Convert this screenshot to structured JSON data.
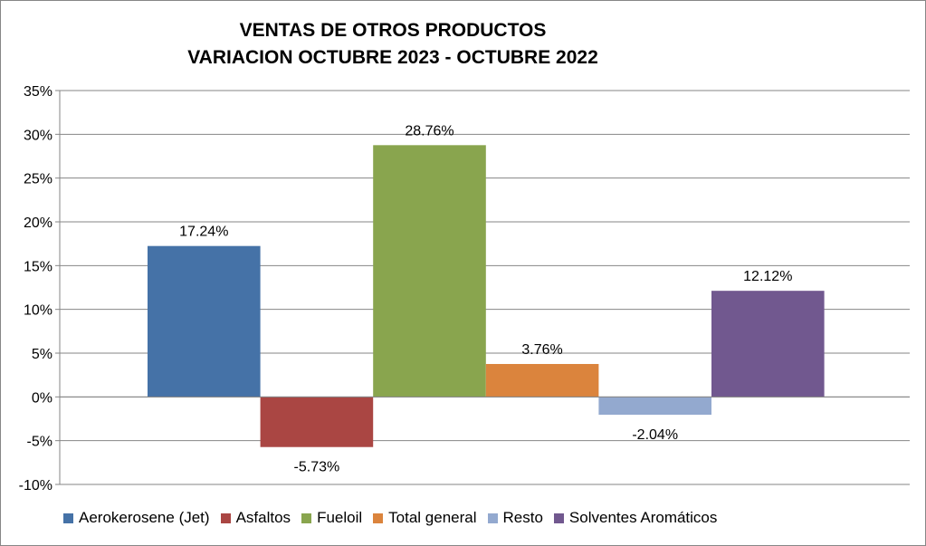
{
  "chart_data": {
    "type": "bar",
    "title": [
      "VENTAS DE OTROS PRODUCTOS",
      "VARIACION OCTUBRE 2023 - OCTUBRE 2022"
    ],
    "xlabel": "",
    "ylabel": "",
    "ylim": [
      -10,
      35
    ],
    "yticks": [
      -10,
      -5,
      0,
      5,
      10,
      15,
      20,
      25,
      30,
      35
    ],
    "ytick_labels": [
      "-10%",
      "-5%",
      "0%",
      "5%",
      "10%",
      "15%",
      "20%",
      "25%",
      "30%",
      "35%"
    ],
    "grid": true,
    "legend_position": "bottom",
    "series": [
      {
        "name": "Aerokerosene (Jet)",
        "value": 17.24,
        "label": "17.24%",
        "color": "#4572A7"
      },
      {
        "name": "Asfaltos",
        "value": -5.73,
        "label": "-5.73%",
        "color": "#AA4643"
      },
      {
        "name": "Fueloil",
        "value": 28.76,
        "label": "28.76%",
        "color": "#89A54E"
      },
      {
        "name": "Total general",
        "value": 3.76,
        "label": "3.76%",
        "color": "#DB843D"
      },
      {
        "name": "Resto",
        "value": -2.04,
        "label": "-2.04%",
        "color": "#93A9CF"
      },
      {
        "name": "Solventes Aromáticos",
        "value": 12.12,
        "label": "12.12%",
        "color": "#71588F"
      }
    ]
  }
}
